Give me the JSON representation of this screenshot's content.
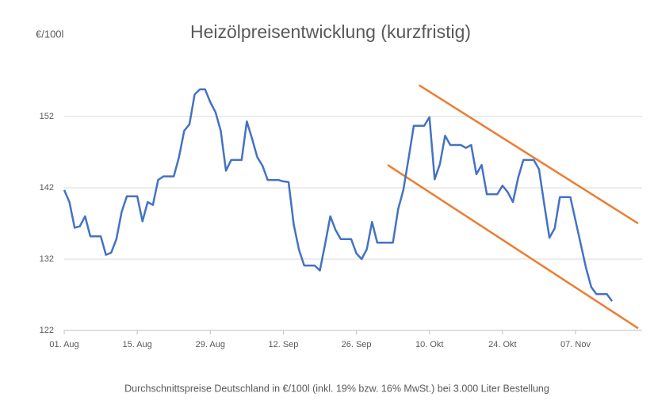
{
  "chart_data": {
    "type": "line",
    "title": "Heizölpreisentwicklung (kurzfristig)",
    "y_label": "€/100l",
    "caption": "Durchschnittspreise Deutschland in €/100l (inkl. 19% bzw. 16%  MwSt.) bei 3.000 Liter Bestellung",
    "categories": [
      "01. Aug",
      null,
      null,
      null,
      null,
      null,
      null,
      null,
      null,
      null,
      null,
      null,
      null,
      null,
      "15. Aug",
      null,
      null,
      null,
      null,
      null,
      null,
      null,
      null,
      null,
      null,
      null,
      null,
      null,
      "29. Aug",
      null,
      null,
      null,
      null,
      null,
      null,
      null,
      null,
      null,
      null,
      null,
      null,
      null,
      "12. Sep",
      null,
      null,
      null,
      null,
      null,
      null,
      null,
      null,
      null,
      null,
      null,
      null,
      null,
      "26. Sep",
      null,
      null,
      null,
      null,
      null,
      null,
      null,
      null,
      null,
      null,
      null,
      null,
      null,
      "10. Okt",
      null,
      null,
      null,
      null,
      null,
      null,
      null,
      null,
      null,
      null,
      null,
      null,
      null,
      "24. Okt",
      null,
      null,
      null,
      null,
      null,
      null,
      null,
      null,
      null,
      null,
      null,
      null,
      null,
      "07. Nov",
      null,
      null,
      null,
      null,
      null,
      null,
      null,
      null,
      null,
      null,
      null,
      null
    ],
    "series": [
      {
        "color": "#4472c4",
        "values": [
          141.7,
          140,
          136.4,
          136.6,
          138,
          135.2,
          135.2,
          135.2,
          132.6,
          132.9,
          134.8,
          138.6,
          140.8,
          140.8,
          140.8,
          137.3,
          140,
          139.6,
          143.1,
          143.6,
          143.6,
          143.6,
          146.3,
          150,
          150.9,
          155.1,
          155.8,
          155.8,
          154,
          152.6,
          150,
          144.4,
          145.9,
          145.9,
          145.9,
          151.3,
          148.9,
          146.3,
          145.1,
          143.1,
          143.1,
          143.1,
          142.9,
          142.8,
          136.8,
          133.3,
          131.1,
          131.1,
          131.1,
          130.4,
          134.1,
          138,
          136.1,
          134.8,
          134.8,
          134.8,
          132.8,
          132,
          133.4,
          137.2,
          134.3,
          134.3,
          134.3,
          134.3,
          139,
          141.7,
          146.1,
          150.7,
          150.7,
          150.7,
          151.9,
          143.2,
          145.3,
          149.3,
          148,
          148,
          148,
          147.6,
          148,
          143.9,
          145.2,
          141.1,
          141.1,
          141.1,
          142.3,
          141.4,
          140,
          143.4,
          145.9,
          145.9,
          145.9,
          144.6,
          139.7,
          135,
          136.3,
          140.7,
          140.7,
          140.7,
          137.4,
          134.1,
          130.8,
          128.1,
          127.1,
          127.1,
          127.1,
          126.1,
          null,
          null,
          null,
          null,
          null
        ]
      }
    ],
    "trend_lines": [
      {
        "color": "#ed7d31",
        "x": [
          68,
          110
        ],
        "values": [
          156.4,
          137.0
        ]
      },
      {
        "color": "#ed7d31",
        "x": [
          62,
          110
        ],
        "values": [
          145.2,
          122.3
        ]
      }
    ],
    "ylim": [
      122,
      160
    ],
    "yticks": [
      122,
      132,
      142,
      152
    ],
    "grid": true
  }
}
